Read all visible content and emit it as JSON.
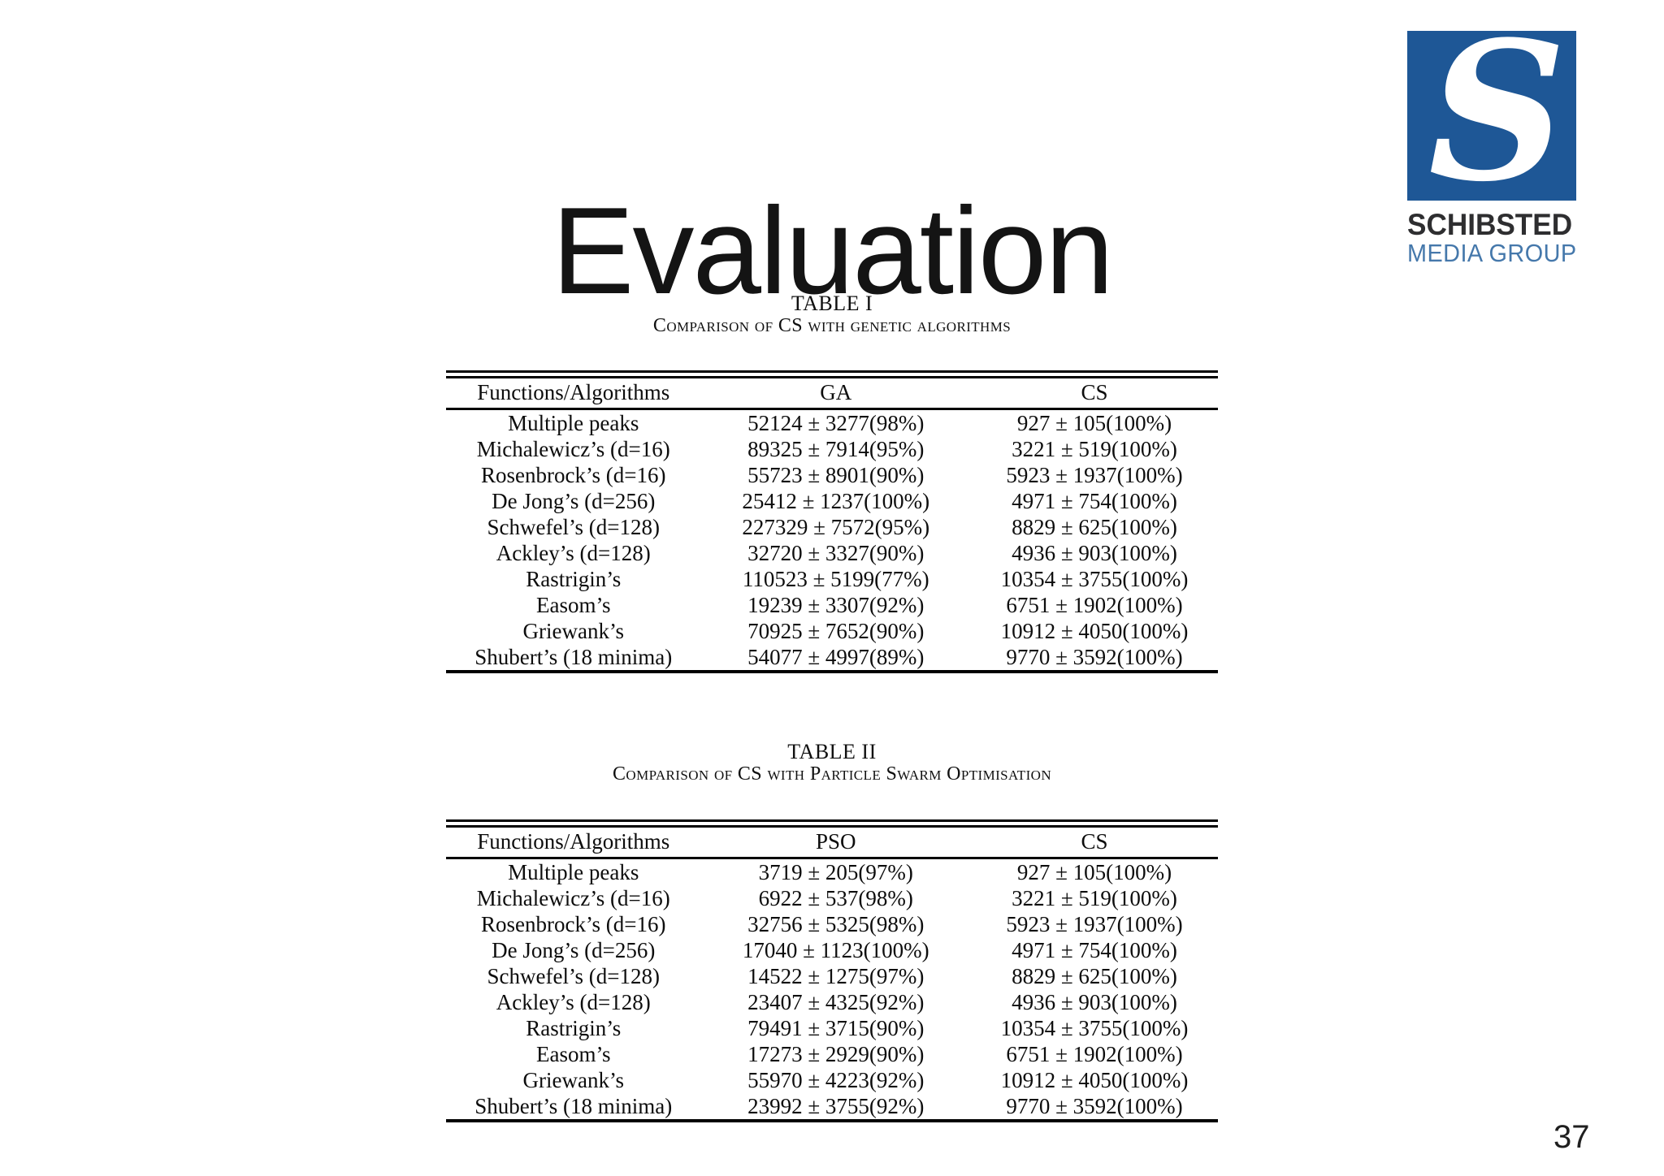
{
  "slide": {
    "title": "Evaluation",
    "page_number": "37"
  },
  "logo": {
    "monogram": "S",
    "brand": "SCHIBSTED",
    "sub_brand": "MEDIA GROUP",
    "colors": {
      "square": "#1e5796",
      "brand_text": "#2e2e30",
      "sub_brand_text": "#4578ab"
    }
  },
  "tables": {
    "table1": {
      "caption_title": "TABLE I",
      "caption_subtitle": "Comparison of CS with genetic algorithms",
      "columns": [
        "Functions/Algorithms",
        "GA",
        "CS"
      ],
      "rows": [
        [
          "Multiple peaks",
          "52124 ± 3277(98%)",
          "927 ± 105(100%)"
        ],
        [
          "Michalewicz’s (d=16)",
          "89325 ± 7914(95%)",
          "3221 ± 519(100%)"
        ],
        [
          "Rosenbrock’s (d=16)",
          "55723 ± 8901(90%)",
          "5923 ± 1937(100%)"
        ],
        [
          "De Jong’s (d=256)",
          "25412 ± 1237(100%)",
          "4971 ± 754(100%)"
        ],
        [
          "Schwefel’s (d=128)",
          "227329 ± 7572(95%)",
          "8829 ± 625(100%)"
        ],
        [
          "Ackley’s (d=128)",
          "32720 ± 3327(90%)",
          "4936 ± 903(100%)"
        ],
        [
          "Rastrigin’s",
          "110523 ± 5199(77%)",
          "10354 ± 3755(100%)"
        ],
        [
          "Easom’s",
          "19239 ± 3307(92%)",
          "6751 ± 1902(100%)"
        ],
        [
          "Griewank’s",
          "70925 ± 7652(90%)",
          "10912 ± 4050(100%)"
        ],
        [
          "Shubert’s (18 minima)",
          "54077 ± 4997(89%)",
          "9770 ± 3592(100%)"
        ]
      ]
    },
    "table2": {
      "caption_title": "TABLE II",
      "caption_subtitle": "Comparison of CS with Particle Swarm Optimisation",
      "columns": [
        "Functions/Algorithms",
        "PSO",
        "CS"
      ],
      "rows": [
        [
          "Multiple peaks",
          "3719 ± 205(97%)",
          "927 ± 105(100%)"
        ],
        [
          "Michalewicz’s (d=16)",
          "6922 ± 537(98%)",
          "3221 ± 519(100%)"
        ],
        [
          "Rosenbrock’s (d=16)",
          "32756 ± 5325(98%)",
          "5923 ± 1937(100%)"
        ],
        [
          "De Jong’s (d=256)",
          "17040 ± 1123(100%)",
          "4971 ± 754(100%)"
        ],
        [
          "Schwefel’s (d=128)",
          "14522 ± 1275(97%)",
          "8829 ± 625(100%)"
        ],
        [
          "Ackley’s (d=128)",
          "23407 ± 4325(92%)",
          "4936 ± 903(100%)"
        ],
        [
          "Rastrigin’s",
          "79491 ± 3715(90%)",
          "10354 ± 3755(100%)"
        ],
        [
          "Easom’s",
          "17273 ± 2929(90%)",
          "6751 ± 1902(100%)"
        ],
        [
          "Griewank’s",
          "55970 ± 4223(92%)",
          "10912 ± 4050(100%)"
        ],
        [
          "Shubert’s (18 minima)",
          "23992 ± 3755(92%)",
          "9770 ± 3592(100%)"
        ]
      ]
    }
  }
}
